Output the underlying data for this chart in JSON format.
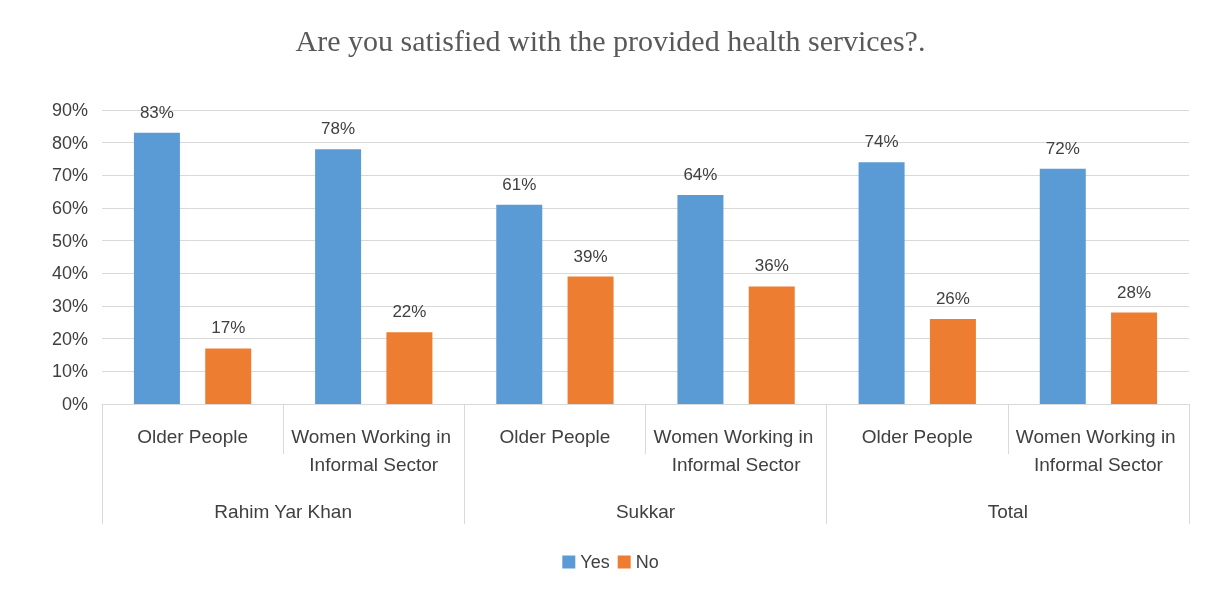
{
  "chart_data": {
    "type": "bar",
    "title": "Are you satisfied with the provided health services?.",
    "categories": [
      "Older People",
      "Women Working in Informal Sector",
      "Older People",
      "Women Working in Informal Sector",
      "Older People",
      "Women Working in Informal Sector"
    ],
    "annotations": [
      "Rahim Yar Khan",
      "Sukkar",
      "Total"
    ],
    "series": [
      {
        "name": "Yes",
        "color": "#5b9bd5",
        "values": [
          83,
          78,
          61,
          64,
          74,
          72
        ],
        "value_labels": [
          "83%",
          "78%",
          "61%",
          "64%",
          "74%",
          "72%"
        ]
      },
      {
        "name": "No",
        "color": "#ed7d31",
        "values": [
          17,
          22,
          39,
          36,
          26,
          28
        ],
        "value_labels": [
          "17%",
          "22%",
          "39%",
          "36%",
          "26%",
          "28%"
        ]
      }
    ],
    "ylim": [
      0,
      90
    ],
    "yticks": [
      {
        "value": 0,
        "label": "0%"
      },
      {
        "value": 10,
        "label": "10%"
      },
      {
        "value": 20,
        "label": "20%"
      },
      {
        "value": 30,
        "label": "30%"
      },
      {
        "value": 40,
        "label": "40%"
      },
      {
        "value": 50,
        "label": "50%"
      },
      {
        "value": 60,
        "label": "60%"
      },
      {
        "value": 70,
        "label": "70%"
      },
      {
        "value": 80,
        "label": "80%"
      },
      {
        "value": 90,
        "label": "90%"
      }
    ],
    "grid": "y",
    "legend": "bottom"
  }
}
